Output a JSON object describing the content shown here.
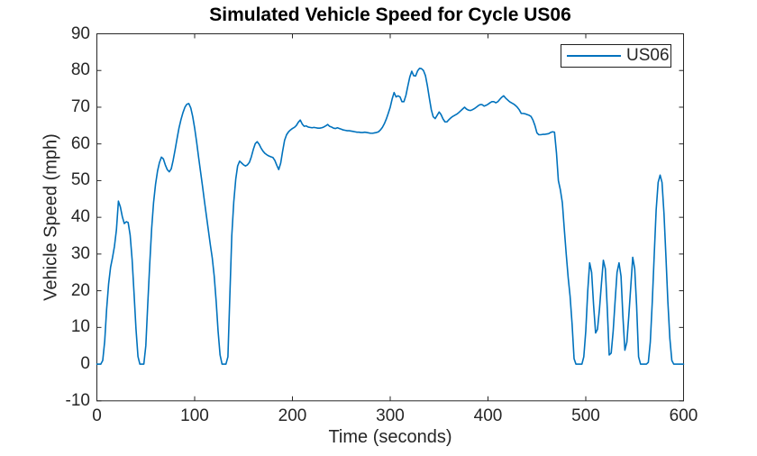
{
  "figure": {
    "title": "Simulated Vehicle Speed for Cycle US06"
  },
  "axes": {
    "xlabel": "Time (seconds)",
    "ylabel": "Vehicle Speed (mph)"
  },
  "legend": {
    "label": "US06"
  },
  "colors": {
    "line": "#0072BD",
    "axis": "#262626",
    "title": "#000000",
    "background": "#ffffff",
    "legend_border": "#1f1f1f"
  },
  "chart_data": {
    "type": "line",
    "title": "Simulated Vehicle Speed for Cycle US06",
    "xlabel": "Time (seconds)",
    "ylabel": "Vehicle Speed (mph)",
    "xlim": [
      0,
      600
    ],
    "ylim": [
      -10,
      90
    ],
    "x_ticks": [
      0,
      100,
      200,
      300,
      400,
      500,
      600
    ],
    "y_ticks": [
      -10,
      0,
      10,
      20,
      30,
      40,
      50,
      60,
      70,
      80,
      90
    ],
    "grid": false,
    "box": true,
    "legend_position": "northeast",
    "legend_entries": [
      "US06"
    ],
    "series": [
      {
        "name": "US06",
        "color": "#0072BD",
        "t_start": 0,
        "t_step_seconds": 2,
        "speed_mph": [
          0,
          0,
          0,
          1,
          6.3,
          14.9,
          21.8,
          26.4,
          29.1,
          32.1,
          36.6,
          44.4,
          42.9,
          40.2,
          38.3,
          38.8,
          38.6,
          35.2,
          28.5,
          19.5,
          9.6,
          2.1,
          0,
          0,
          0,
          5,
          16,
          27,
          37,
          44,
          49,
          52.6,
          54.9,
          56.4,
          55.9,
          54.3,
          53,
          52.4,
          53.2,
          55.5,
          58.4,
          61.5,
          64.3,
          66.6,
          68.5,
          70,
          70.8,
          71,
          69.8,
          67.5,
          64.3,
          60.5,
          56.5,
          52.5,
          48.5,
          44.5,
          40.5,
          36.5,
          32.5,
          29,
          24,
          17,
          9,
          2.5,
          0,
          0,
          0,
          2,
          19,
          35,
          44.2,
          50.4,
          54,
          55.3,
          54.8,
          54.3,
          54,
          54.3,
          55,
          56.5,
          58.5,
          60.1,
          60.6,
          59.9,
          58.8,
          58,
          57.4,
          57,
          56.7,
          56.5,
          56.3,
          55.5,
          54.2,
          53,
          54.8,
          58,
          61,
          62.5,
          63.3,
          63.8,
          64.2,
          64.5,
          65,
          65.9,
          66.5,
          65.4,
          64.8,
          64.9,
          64.6,
          64.5,
          64.4,
          64.5,
          64.4,
          64.3,
          64.3,
          64.4,
          64.6,
          64.9,
          65.3,
          64.8,
          64.6,
          64.3,
          64.2,
          64.4,
          64.2,
          64,
          63.8,
          63.7,
          63.6,
          63.6,
          63.5,
          63.4,
          63.3,
          63.2,
          63.2,
          63.1,
          63.1,
          63.2,
          63.1,
          63,
          62.9,
          62.9,
          63,
          63.1,
          63.3,
          63.8,
          64.5,
          65.5,
          66.8,
          68.3,
          70,
          72.3,
          74,
          72.8,
          73.1,
          72.8,
          71.5,
          71.5,
          73.2,
          75.7,
          78.2,
          79.8,
          78.6,
          78.5,
          79.9,
          80.6,
          80.5,
          80,
          78.6,
          75.9,
          72.5,
          69.3,
          67.4,
          66.9,
          67.8,
          68.7,
          68,
          66.8,
          66,
          66,
          66.6,
          67.1,
          67.5,
          67.8,
          68.1,
          68.5,
          69,
          69.5,
          70,
          69.5,
          69.2,
          69.1,
          69.3,
          69.6,
          70,
          70.4,
          70.7,
          70.7,
          70.3,
          70.5,
          70.8,
          71.2,
          71.5,
          71.5,
          71.2,
          71.5,
          72.1,
          72.7,
          73.1,
          72.5,
          72,
          71.5,
          71.2,
          70.9,
          70.5,
          70,
          69.3,
          68.3,
          68.3,
          68.2,
          68,
          67.8,
          67.5,
          66.5,
          65,
          63,
          62.5,
          62.5,
          62.6,
          62.6,
          62.7,
          62.8,
          63.1,
          63.3,
          63.2,
          57.5,
          50,
          47.5,
          44,
          37,
          30,
          23.5,
          18.5,
          11,
          1.5,
          0,
          0,
          0,
          0,
          2,
          9,
          20,
          27.6,
          25,
          16,
          8.5,
          9.5,
          15,
          22,
          28.3,
          26,
          15,
          2.5,
          3,
          9,
          17,
          25,
          27.6,
          24,
          13,
          3.8,
          6,
          13,
          21,
          29.1,
          26,
          16,
          2,
          0,
          0,
          0,
          0,
          0.5,
          6,
          17,
          30,
          42,
          49.5,
          51.5,
          49.5,
          41,
          29,
          17,
          7,
          1,
          0,
          0,
          0,
          0,
          0,
          0
        ]
      }
    ]
  }
}
